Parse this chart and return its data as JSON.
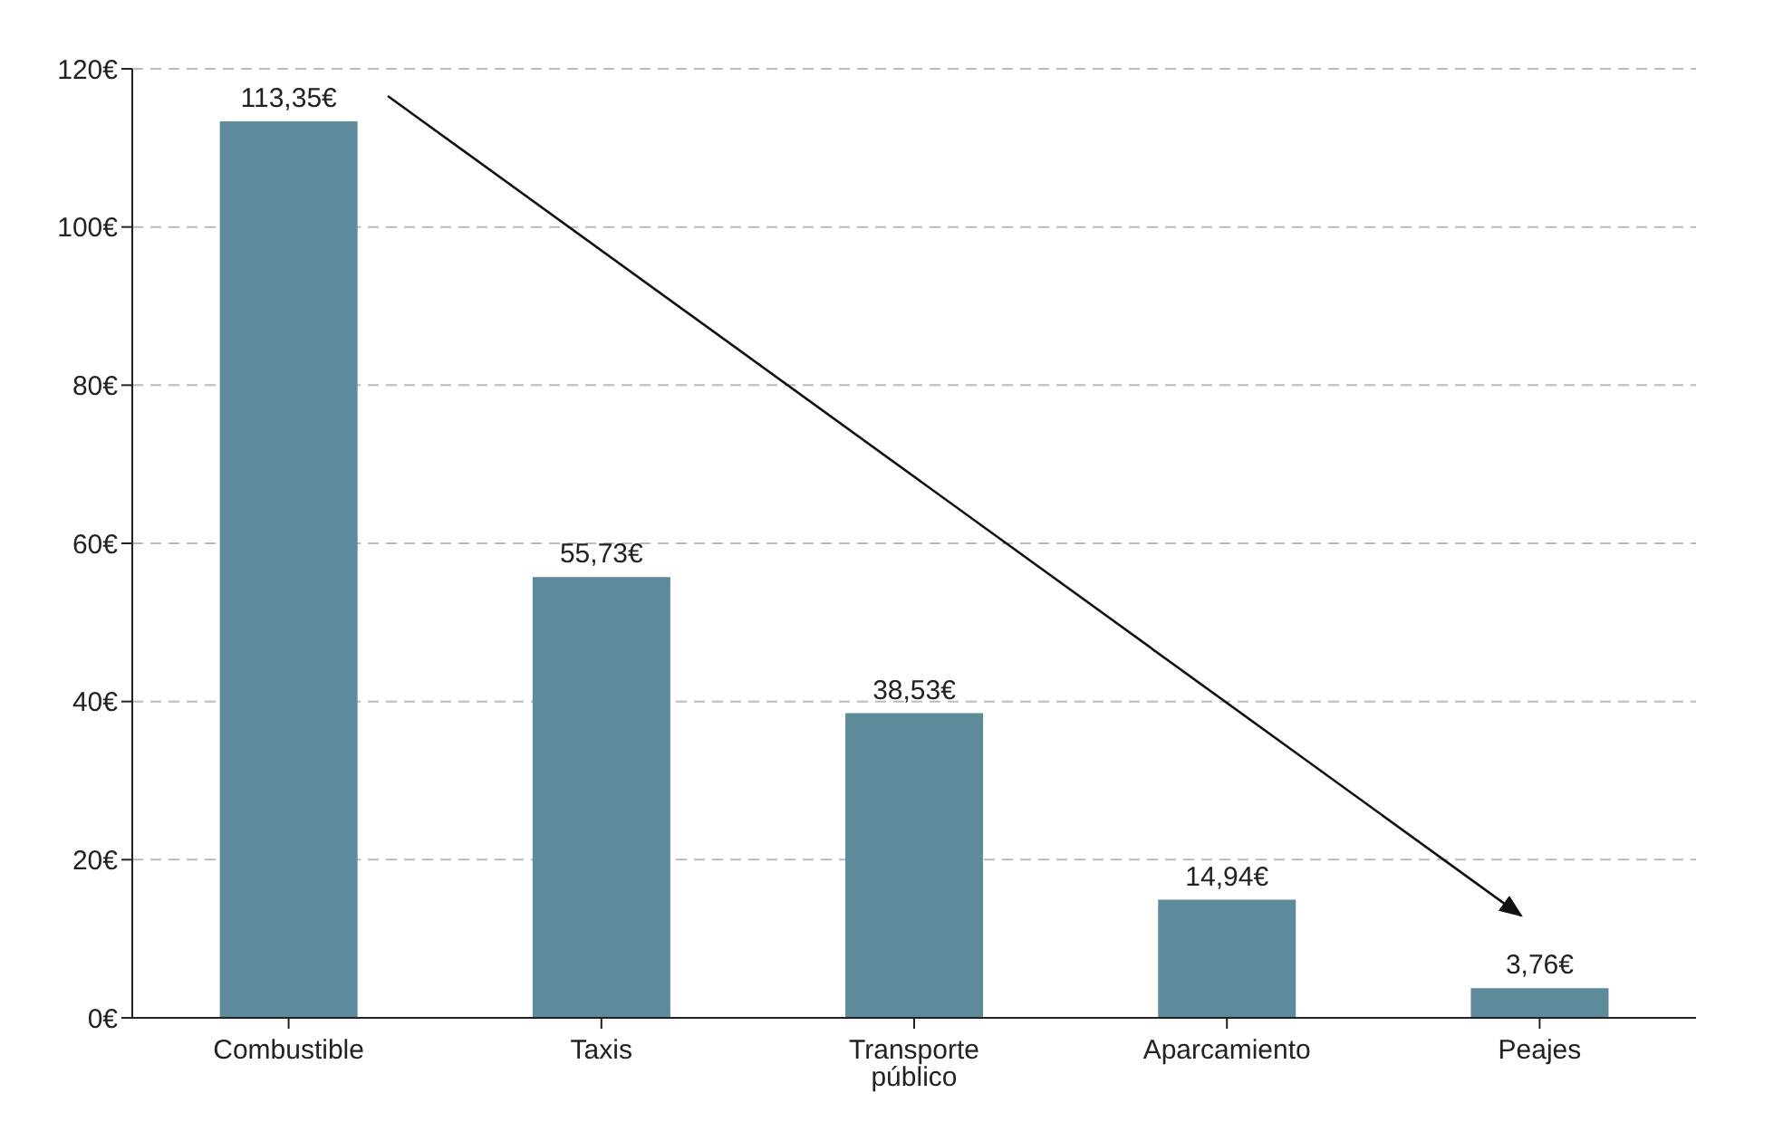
{
  "chart_data": {
    "type": "bar",
    "categories": [
      "Combustible",
      "Taxis",
      "Transporte público",
      "Aparcamiento",
      "Peajes"
    ],
    "values": [
      113.35,
      55.73,
      38.53,
      14.94,
      3.76
    ],
    "value_labels": [
      "113,35€",
      "55,73€",
      "38,53€",
      "14,94€",
      "3,76€"
    ],
    "color": "#5e8b9b",
    "ylim": [
      0,
      120
    ],
    "yticks": [
      {
        "value": 0,
        "label": "0€"
      },
      {
        "value": 20,
        "label": "20€"
      },
      {
        "value": 40,
        "label": "40€"
      },
      {
        "value": 60,
        "label": "60€"
      },
      {
        "value": 80,
        "label": "80€"
      },
      {
        "value": 100,
        "label": "100€"
      },
      {
        "value": 120,
        "label": "120€"
      }
    ],
    "grid": "y"
  }
}
